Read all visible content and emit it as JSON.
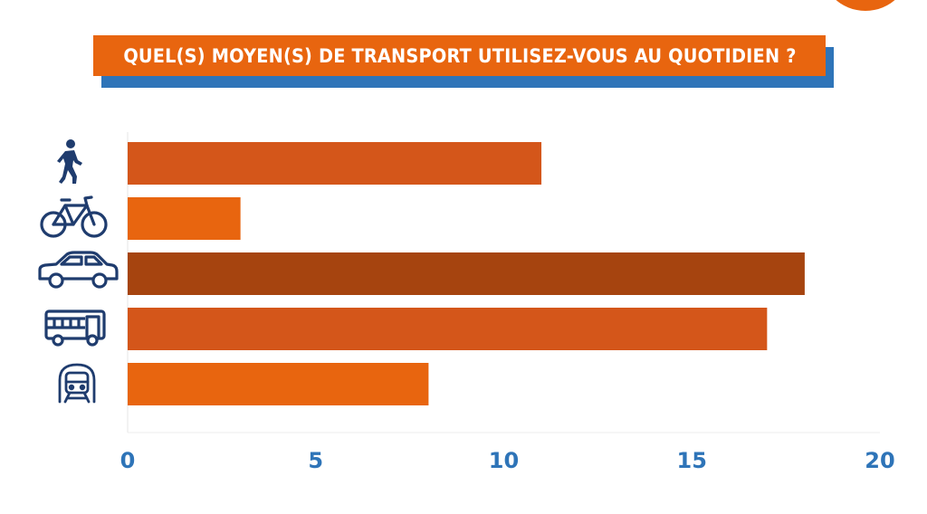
{
  "title": "QUEL(S) MOYEN(S) DE TRANSPORT UTILISEZ-VOUS AU QUOTIDIEN ?",
  "colors": {
    "accent": "#e8650f",
    "accent_dark": "#d4561a",
    "brown": "#a6440f",
    "blue": "#2e74b8",
    "icon_navy": "#1f3c6e"
  },
  "chart_data": {
    "type": "bar",
    "orientation": "horizontal",
    "categories": [
      "walking-icon",
      "bicycle-icon",
      "car-icon",
      "bus-icon",
      "train-icon"
    ],
    "values": [
      11,
      3,
      18,
      17,
      8
    ],
    "bar_colors": [
      "#d4561a",
      "#e8650f",
      "#a6440f",
      "#d4561a",
      "#e8650f"
    ],
    "xlim": [
      0,
      20
    ],
    "xticks": [
      "0",
      "5",
      "10",
      "15",
      "20"
    ],
    "xtick_values": [
      0,
      5,
      10,
      15,
      20
    ],
    "grid": false,
    "legend": "none"
  }
}
